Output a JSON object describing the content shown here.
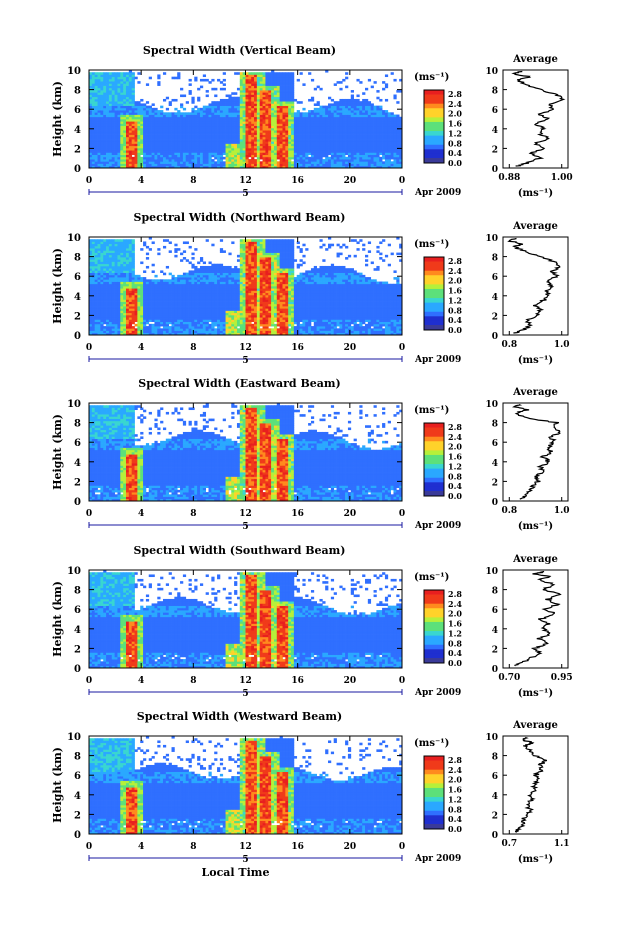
{
  "chart_data": [
    {
      "type": "heatmap",
      "title": "Spectral Width (Vertical Beam)",
      "xlabel": "",
      "ylabel": "Height (km)",
      "xticks": [
        "0",
        "4",
        "8",
        "12",
        "16",
        "20",
        "0"
      ],
      "yticks": [
        "0",
        "2",
        "4",
        "6",
        "8",
        "10"
      ],
      "xlim": [
        0,
        24
      ],
      "ylim": [
        0,
        10
      ],
      "date_marker": "5",
      "date_label": "Apr 2009",
      "colorbar": {
        "unit": "(ms⁻¹)",
        "ticks": [
          "2.8",
          "2.4",
          "2.0",
          "1.6",
          "1.2",
          "0.8",
          "0.4",
          "0.0"
        ]
      },
      "avg": {
        "title": "Average",
        "xlabel": "(ms⁻¹)",
        "xticks": [
          "0.88",
          "1.00"
        ],
        "yticks": [
          "0",
          "2",
          "4",
          "6",
          "8",
          "10"
        ],
        "profile": [
          [
            0.9,
            0.2
          ],
          [
            0.92,
            0.5
          ],
          [
            0.95,
            1.0
          ],
          [
            0.93,
            1.5
          ],
          [
            0.96,
            2.0
          ],
          [
            0.94,
            2.5
          ],
          [
            0.97,
            3.0
          ],
          [
            0.95,
            3.5
          ],
          [
            0.96,
            4.0
          ],
          [
            0.94,
            4.5
          ],
          [
            0.97,
            5.0
          ],
          [
            0.95,
            5.5
          ],
          [
            0.98,
            6.0
          ],
          [
            0.97,
            6.5
          ],
          [
            1.0,
            7.0
          ],
          [
            0.99,
            7.5
          ],
          [
            0.95,
            8.0
          ],
          [
            0.92,
            8.5
          ],
          [
            0.9,
            9.0
          ],
          [
            0.93,
            9.3
          ],
          [
            0.89,
            9.6
          ],
          [
            0.91,
            9.9
          ]
        ]
      }
    },
    {
      "type": "heatmap",
      "title": "Spectral Width (Northward Beam)",
      "xlabel": "",
      "ylabel": "Height (km)",
      "xticks": [
        "0",
        "4",
        "8",
        "12",
        "16",
        "20",
        "0"
      ],
      "yticks": [
        "0",
        "2",
        "4",
        "6",
        "8",
        "10"
      ],
      "xlim": [
        0,
        24
      ],
      "ylim": [
        0,
        10
      ],
      "date_marker": "5",
      "date_label": "Apr 2009",
      "colorbar": {
        "unit": "(ms⁻¹)",
        "ticks": [
          "2.8",
          "2.4",
          "2.0",
          "1.6",
          "1.2",
          "0.8",
          "0.4",
          "0.0"
        ]
      },
      "avg": {
        "title": "Average",
        "xlabel": "(ms⁻¹)",
        "xticks": [
          "0.8",
          "1.0"
        ],
        "yticks": [
          "0",
          "2",
          "4",
          "6",
          "8",
          "10"
        ],
        "profile": [
          [
            0.82,
            0.2
          ],
          [
            0.85,
            0.5
          ],
          [
            0.88,
            1.0
          ],
          [
            0.87,
            1.5
          ],
          [
            0.9,
            2.0
          ],
          [
            0.92,
            2.5
          ],
          [
            0.9,
            3.0
          ],
          [
            0.93,
            3.5
          ],
          [
            0.95,
            4.0
          ],
          [
            0.94,
            4.5
          ],
          [
            0.96,
            5.0
          ],
          [
            0.95,
            5.5
          ],
          [
            0.98,
            6.0
          ],
          [
            0.96,
            6.5
          ],
          [
            0.99,
            7.0
          ],
          [
            0.97,
            7.5
          ],
          [
            0.92,
            8.0
          ],
          [
            0.86,
            8.5
          ],
          [
            0.82,
            9.0
          ],
          [
            0.85,
            9.3
          ],
          [
            0.8,
            9.6
          ],
          [
            0.83,
            9.9
          ]
        ]
      }
    },
    {
      "type": "heatmap",
      "title": "Spectral Width (Eastward Beam)",
      "xlabel": "",
      "ylabel": "Height (km)",
      "xticks": [
        "0",
        "4",
        "8",
        "12",
        "16",
        "20",
        "0"
      ],
      "yticks": [
        "0",
        "2",
        "4",
        "6",
        "8",
        "10"
      ],
      "xlim": [
        0,
        24
      ],
      "ylim": [
        0,
        10
      ],
      "date_marker": "5",
      "date_label": "Apr 2009",
      "colorbar": {
        "unit": "(ms⁻¹)",
        "ticks": [
          "2.8",
          "2.4",
          "2.0",
          "1.6",
          "1.2",
          "0.8",
          "0.4",
          "0.0"
        ]
      },
      "avg": {
        "title": "Average",
        "xlabel": "(ms⁻¹)",
        "xticks": [
          "0.8",
          "1.0"
        ],
        "yticks": [
          "0",
          "2",
          "4",
          "6",
          "8",
          "10"
        ],
        "profile": [
          [
            0.84,
            0.2
          ],
          [
            0.86,
            0.5
          ],
          [
            0.88,
            1.0
          ],
          [
            0.89,
            1.5
          ],
          [
            0.91,
            2.0
          ],
          [
            0.9,
            2.5
          ],
          [
            0.93,
            3.0
          ],
          [
            0.92,
            3.5
          ],
          [
            0.95,
            4.0
          ],
          [
            0.93,
            4.5
          ],
          [
            0.96,
            5.0
          ],
          [
            0.95,
            5.5
          ],
          [
            0.97,
            6.0
          ],
          [
            0.96,
            6.5
          ],
          [
            0.99,
            7.0
          ],
          [
            0.97,
            7.5
          ],
          [
            0.98,
            8.0
          ],
          [
            0.86,
            8.5
          ],
          [
            0.83,
            9.0
          ],
          [
            0.87,
            9.3
          ],
          [
            0.82,
            9.6
          ],
          [
            0.84,
            9.9
          ]
        ]
      }
    },
    {
      "type": "heatmap",
      "title": "Spectral Width (Southward Beam)",
      "xlabel": "",
      "ylabel": "Height (km)",
      "xticks": [
        "0",
        "4",
        "8",
        "12",
        "16",
        "20",
        "0"
      ],
      "yticks": [
        "0",
        "2",
        "4",
        "6",
        "8",
        "10"
      ],
      "xlim": [
        0,
        24
      ],
      "ylim": [
        0,
        10
      ],
      "date_marker": "5",
      "date_label": "Apr 2009",
      "colorbar": {
        "unit": "(ms⁻¹)",
        "ticks": [
          "2.8",
          "2.4",
          "2.0",
          "1.6",
          "1.2",
          "0.8",
          "0.4",
          "0.0"
        ]
      },
      "avg": {
        "title": "Average",
        "xlabel": "(ms⁻¹)",
        "xticks": [
          "0.70",
          "0.95"
        ],
        "yticks": [
          "0",
          "2",
          "4",
          "6",
          "8",
          "10"
        ],
        "profile": [
          [
            0.72,
            0.2
          ],
          [
            0.76,
            0.5
          ],
          [
            0.8,
            1.0
          ],
          [
            0.85,
            1.5
          ],
          [
            0.82,
            2.0
          ],
          [
            0.88,
            2.5
          ],
          [
            0.84,
            3.0
          ],
          [
            0.9,
            3.5
          ],
          [
            0.86,
            4.0
          ],
          [
            0.89,
            4.5
          ],
          [
            0.85,
            5.0
          ],
          [
            0.92,
            5.5
          ],
          [
            0.87,
            6.0
          ],
          [
            0.93,
            6.5
          ],
          [
            0.88,
            7.0
          ],
          [
            0.94,
            7.5
          ],
          [
            0.86,
            8.0
          ],
          [
            0.92,
            8.5
          ],
          [
            0.84,
            9.0
          ],
          [
            0.9,
            9.3
          ],
          [
            0.82,
            9.6
          ],
          [
            0.88,
            9.9
          ]
        ]
      }
    },
    {
      "type": "heatmap",
      "title": "Spectral Width (Westward Beam)",
      "xlabel": "Local Time",
      "ylabel": "Height (km)",
      "xticks": [
        "0",
        "4",
        "8",
        "12",
        "16",
        "20",
        "0"
      ],
      "yticks": [
        "0",
        "2",
        "4",
        "6",
        "8",
        "10"
      ],
      "xlim": [
        0,
        24
      ],
      "ylim": [
        0,
        10
      ],
      "date_marker": "5",
      "date_label": "Apr 2009",
      "colorbar": {
        "unit": "(ms⁻¹)",
        "ticks": [
          "2.8",
          "2.4",
          "2.0",
          "1.6",
          "1.2",
          "0.8",
          "0.4",
          "0.0"
        ]
      },
      "avg": {
        "title": "Average",
        "xlabel": "(ms⁻¹)",
        "xticks": [
          "0.7",
          "1.1"
        ],
        "yticks": [
          "0",
          "2",
          "4",
          "6",
          "8",
          "10"
        ],
        "profile": [
          [
            0.74,
            0.2
          ],
          [
            0.78,
            0.5
          ],
          [
            0.82,
            1.0
          ],
          [
            0.8,
            1.5
          ],
          [
            0.84,
            2.0
          ],
          [
            0.86,
            2.5
          ],
          [
            0.83,
            3.0
          ],
          [
            0.88,
            3.5
          ],
          [
            0.86,
            4.0
          ],
          [
            0.9,
            4.5
          ],
          [
            0.88,
            5.0
          ],
          [
            0.92,
            5.5
          ],
          [
            0.9,
            6.0
          ],
          [
            0.95,
            6.5
          ],
          [
            0.93,
            7.0
          ],
          [
            0.98,
            7.5
          ],
          [
            0.9,
            8.0
          ],
          [
            0.86,
            8.5
          ],
          [
            0.82,
            9.0
          ],
          [
            0.88,
            9.3
          ],
          [
            0.8,
            9.6
          ],
          [
            0.84,
            9.9
          ]
        ]
      }
    }
  ],
  "colors": {
    "colormap": [
      "#3a3a99",
      "#1f2fd0",
      "#2f6fff",
      "#2aa8ff",
      "#39d6d0",
      "#5ce07a",
      "#b6f03a",
      "#ffd22a",
      "#ff8a1e",
      "#f03a1a",
      "#e81f1f"
    ],
    "background": "#ffffff",
    "date_axis": "#1a1aa0"
  }
}
